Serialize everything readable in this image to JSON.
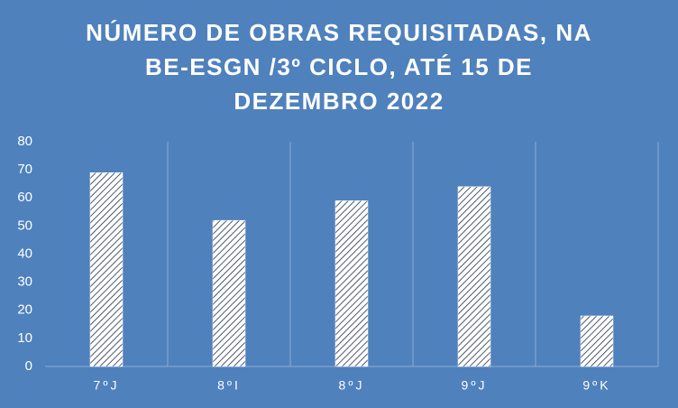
{
  "chart_data": {
    "type": "bar",
    "title": [
      "NÚMERO DE OBRAS REQUISITADAS, NA",
      "BE-ESGN /3º CICLO,  ATÉ 15 DE",
      "DEZEMBRO 2022"
    ],
    "categories": [
      "7ºJ",
      "8ºI",
      "8ºJ",
      "9ºJ",
      "9ºK"
    ],
    "values": [
      69,
      52,
      59,
      64,
      18
    ],
    "color": "#ffffff",
    "ylim": [
      0,
      80
    ],
    "yticks": [
      0,
      10,
      20,
      30,
      40,
      50,
      60,
      70,
      80
    ],
    "grid": false
  }
}
